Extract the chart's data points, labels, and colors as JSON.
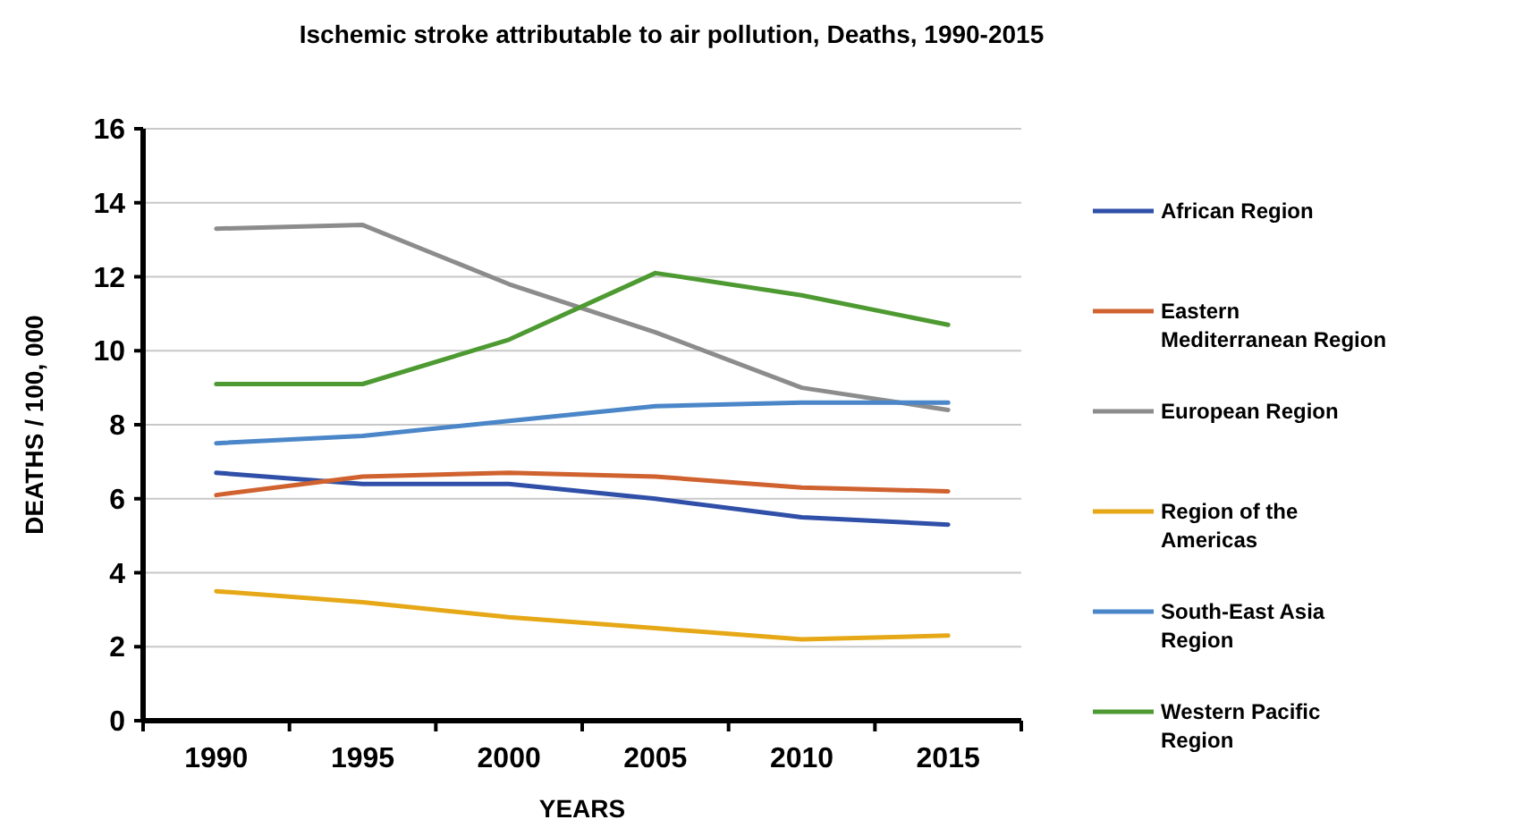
{
  "chart_data": {
    "type": "line",
    "title": "Ischemic stroke attributable to air pollution, Deaths, 1990-2015",
    "xlabel": "YEARS",
    "ylabel": "DEATHS / 100, 000",
    "categories": [
      "1990",
      "1995",
      "2000",
      "2005",
      "2010",
      "2015"
    ],
    "ylim": [
      0,
      16
    ],
    "yticks": [
      0,
      2,
      4,
      6,
      8,
      10,
      12,
      14,
      16
    ],
    "grid": "y",
    "legend": "right",
    "series": [
      {
        "name": "African Region",
        "color": "#2f4fa8",
        "values": [
          6.7,
          6.4,
          6.4,
          6.0,
          5.5,
          5.3
        ]
      },
      {
        "name": "Eastern Mediterranean Region",
        "color": "#d0622f",
        "values": [
          6.1,
          6.6,
          6.7,
          6.6,
          6.3,
          6.2
        ]
      },
      {
        "name": "European Region",
        "color": "#8c8c8c",
        "values": [
          13.3,
          13.4,
          11.8,
          10.5,
          9.0,
          8.4
        ]
      },
      {
        "name": "Region of the Americas",
        "color": "#e6a817",
        "values": [
          3.5,
          3.2,
          2.8,
          2.5,
          2.2,
          2.3
        ]
      },
      {
        "name": "South-East Asia Region",
        "color": "#4a86c8",
        "values": [
          7.5,
          7.7,
          8.1,
          8.5,
          8.6,
          8.6
        ]
      },
      {
        "name": "Western Pacific Region",
        "color": "#4e9a32",
        "values": [
          9.1,
          9.1,
          10.3,
          12.1,
          11.5,
          10.7
        ]
      }
    ]
  }
}
